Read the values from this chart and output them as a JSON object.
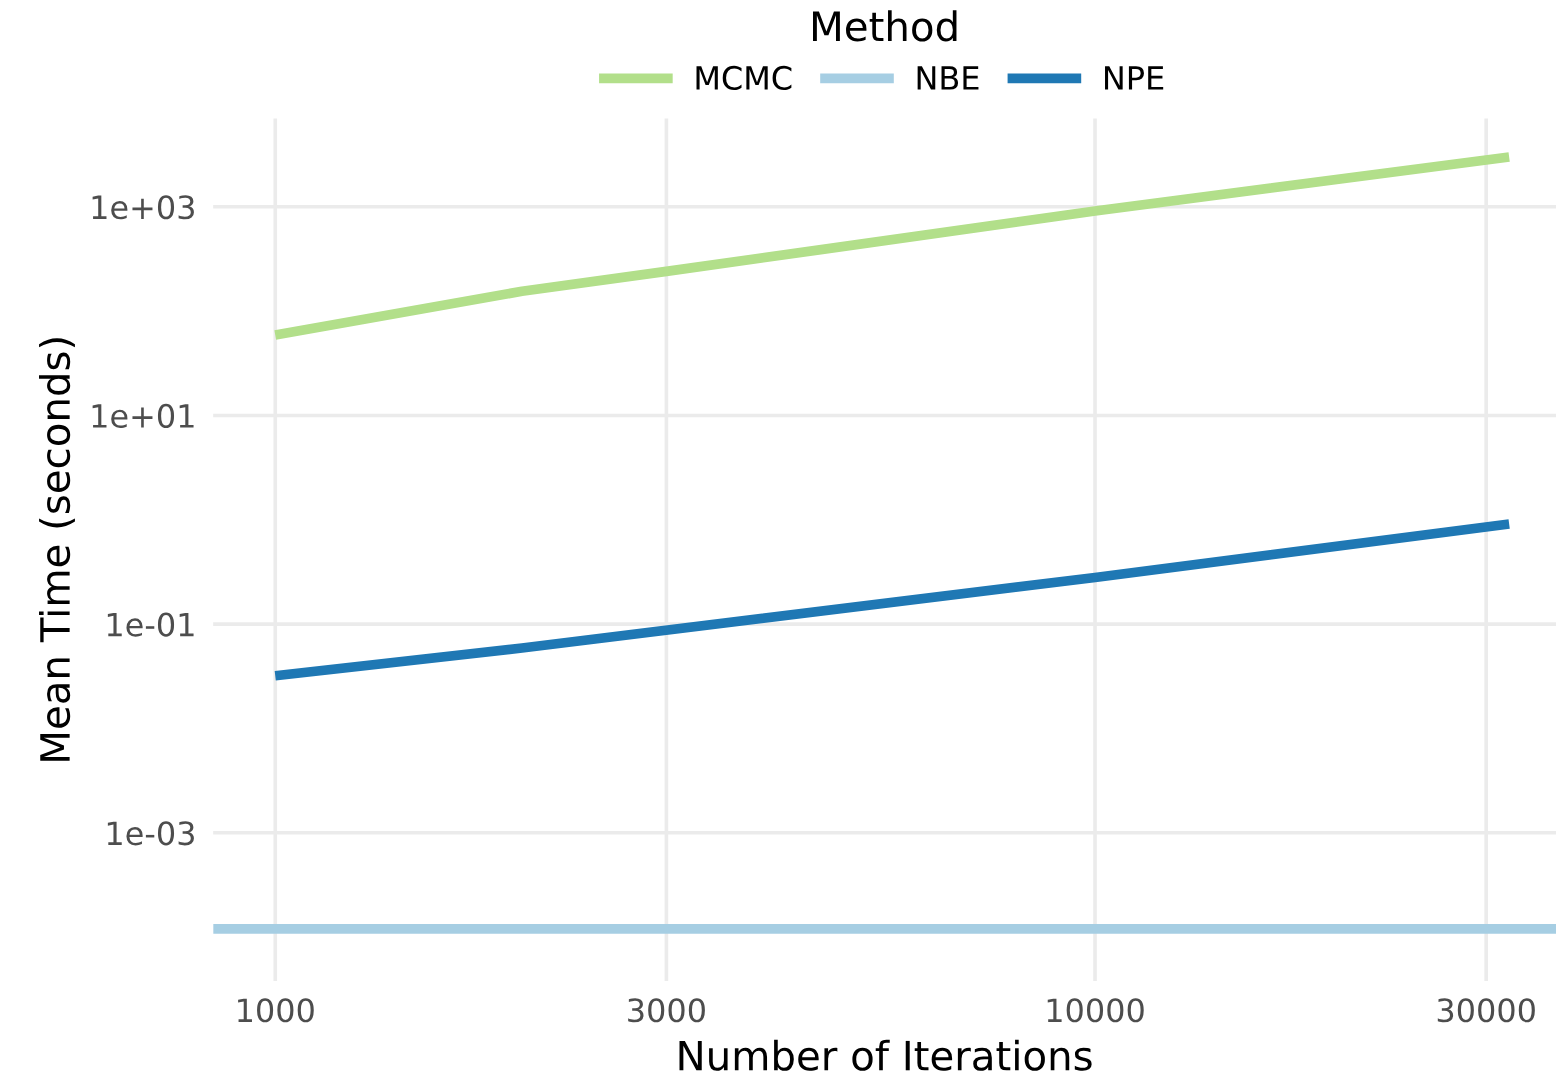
{
  "chart_data": {
    "type": "line",
    "xlabel": "Number of Iterations",
    "ylabel": "Mean Time (seconds)",
    "legend_title": "Method",
    "legend": "top",
    "grid": true,
    "log": "xy",
    "line_style": "solid",
    "marker": "none",
    "xlim": [
      840,
      36500
    ],
    "ylim": [
      3.8e-05,
      7000
    ],
    "xticks": [
      1000,
      3000,
      10000,
      30000
    ],
    "yticks": [
      {
        "value": 0.001,
        "label": "1e-03"
      },
      {
        "value": 0.1,
        "label": "1e-01"
      },
      {
        "value": 10,
        "label": "1e+01"
      },
      {
        "value": 1000,
        "label": "1e+03"
      }
    ],
    "series": [
      {
        "name": "MCMC",
        "color": "#b2df8a",
        "x": [
          1000,
          2000,
          3000,
          10000,
          32000
        ],
        "values": [
          59,
          155,
          240,
          910,
          3000
        ]
      },
      {
        "name": "NBE",
        "color": "#a6cee3",
        "x": [
          840,
          36500
        ],
        "values": [
          0.00012,
          0.00012
        ]
      },
      {
        "name": "NPE",
        "color": "#1f78b4",
        "x": [
          1000,
          2000,
          10000,
          32000
        ],
        "values": [
          0.032,
          0.059,
          0.28,
          0.91
        ]
      }
    ]
  }
}
